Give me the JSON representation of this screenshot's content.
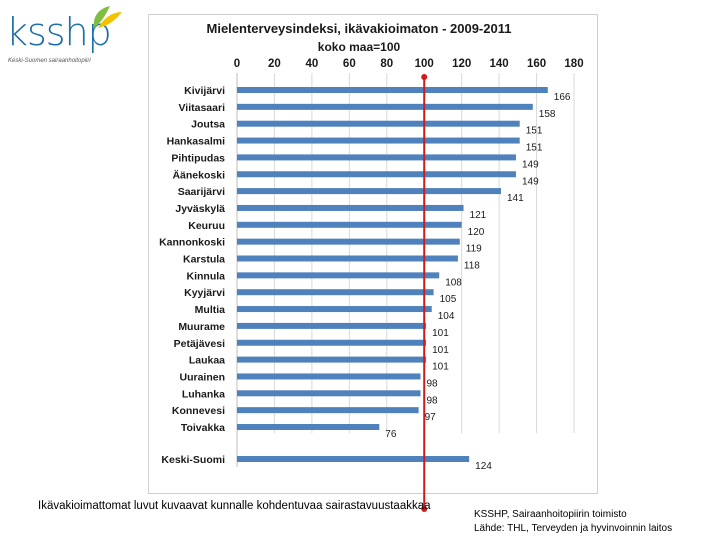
{
  "logo": {
    "name": "ksshp",
    "subtitle": "Keski-Suomen sairaanhoitopiiri",
    "colors": {
      "text": "#1f6fa8",
      "leaf_green": "#7fbf3f",
      "leaf_yellow": "#f2c300"
    }
  },
  "chart_data": {
    "type": "bar",
    "orientation": "horizontal",
    "title": "Mielenterveysindeksi, ikävakioimaton - 2009-2011",
    "subtitle": "koko maa=100",
    "xlim": [
      0,
      180
    ],
    "xticks": [
      "0",
      "20",
      "40",
      "60",
      "80",
      "100",
      "120",
      "140",
      "160",
      "180"
    ],
    "reference_line": 100,
    "bar_color": "#4f81bd",
    "reference_color": "#d11a1a",
    "categories": [
      "Kivijärvi",
      "Viitasaari",
      "Joutsa",
      "Hankasalmi",
      "Pihtipudas",
      "Äänekoski",
      "Saarijärvi",
      "Jyväskylä",
      "Keuruu",
      "Kannonkoski",
      "Karstula",
      "Kinnula",
      "Kyyjärvi",
      "Multia",
      "Muurame",
      "Petäjävesi",
      "Laukaa",
      "Uurainen",
      "Luhanka",
      "Konnevesi",
      "Toivakka",
      "Keski-Suomi"
    ],
    "values": [
      166,
      158,
      151,
      151,
      149,
      149,
      141,
      121,
      120,
      119,
      118,
      108,
      105,
      104,
      101,
      101,
      101,
      98,
      98,
      97,
      76,
      124
    ],
    "separated_last": true
  },
  "captions": {
    "left": "Ikävakioimattomat luvut kuvaavat kunnalle kohdentuvaa sairastavuustaakkaa",
    "right_line1": "KSSHP, Sairaanhoitopiirin toimisto",
    "right_line2": "Lähde:  THL, Terveyden ja hyvinvoinnin laitos"
  }
}
